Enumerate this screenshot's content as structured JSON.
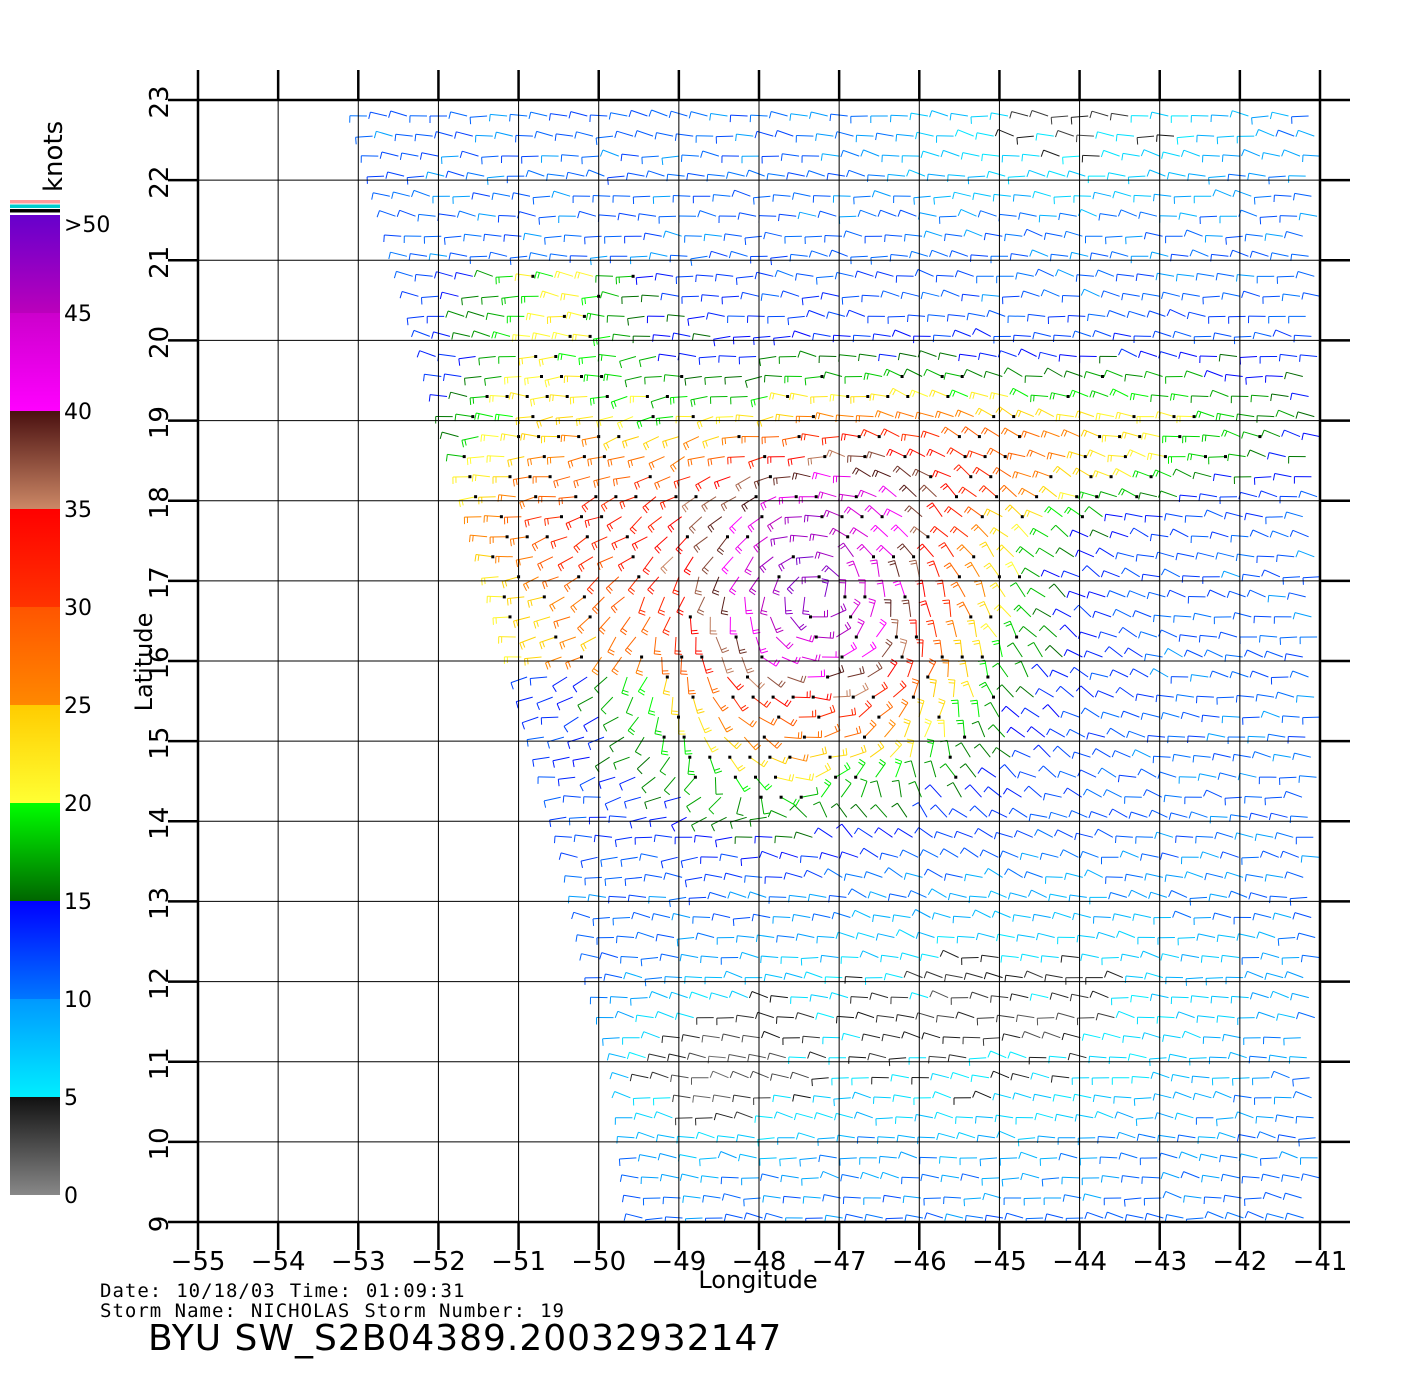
{
  "map": {
    "lon_min": -55,
    "lon_max": -41,
    "lat_min": 9,
    "lat_max": 23,
    "lon_ticks": [
      -55,
      -54,
      -53,
      -52,
      -51,
      -50,
      -49,
      -48,
      -47,
      -46,
      -45,
      -44,
      -43,
      -42,
      -41
    ],
    "lat_ticks": [
      9,
      10,
      11,
      12,
      13,
      14,
      15,
      16,
      17,
      18,
      19,
      20,
      21,
      22,
      23
    ],
    "x_axis_label": "Longitude",
    "y_axis_label": "Latitude",
    "swath_west_edge": [
      [
        -53.0,
        23
      ],
      [
        -51.0,
        16
      ],
      [
        -50.3,
        13.5
      ],
      [
        -50.0,
        12
      ],
      [
        -49.7,
        11
      ],
      [
        -49.5,
        9
      ]
    ],
    "storm_center": {
      "lon": -47.3,
      "lat": 16.8
    },
    "wind_vector_field": "gridded wind barbs over swath, colored by speed"
  },
  "colorbar": {
    "title": "knots",
    "labels": [
      ">50",
      "45",
      "40",
      "35",
      "30",
      "25",
      "20",
      "15",
      "10",
      "5",
      "0"
    ],
    "segments": [
      {
        "from": 0,
        "to": 5,
        "colors": [
          "#888888",
          "#111111"
        ]
      },
      {
        "from": 5,
        "to": 10,
        "colors": [
          "#00eeff",
          "#0099ff"
        ]
      },
      {
        "from": 10,
        "to": 15,
        "colors": [
          "#0077ff",
          "#0000ff"
        ]
      },
      {
        "from": 15,
        "to": 20,
        "colors": [
          "#006600",
          "#00ff00"
        ]
      },
      {
        "from": 20,
        "to": 25,
        "colors": [
          "#ffff33",
          "#ffcc00"
        ]
      },
      {
        "from": 25,
        "to": 30,
        "colors": [
          "#ff8800",
          "#ff5500"
        ]
      },
      {
        "from": 30,
        "to": 35,
        "colors": [
          "#ff3300",
          "#ff0000"
        ]
      },
      {
        "from": 35,
        "to": 40,
        "colors": [
          "#cc8866",
          "#4a1010"
        ]
      },
      {
        "from": 40,
        "to": 45,
        "colors": [
          "#ff00ff",
          "#cc00cc"
        ]
      },
      {
        "from": 45,
        "to": 50,
        "colors": [
          "#bb00bb",
          "#6600cc"
        ]
      }
    ],
    "top_stripes": [
      "#ff9999",
      "#00cccc",
      "#000000"
    ]
  },
  "footer": {
    "date_label": "Date:",
    "date_value": "10/18/03",
    "time_label": "Time:",
    "time_value": "01:09:31",
    "storm_name_label": "Storm  Name:",
    "storm_name_value": "NICHOLAS",
    "storm_number_label": "Storm  Number:",
    "storm_number_value": "19",
    "file_id": "BYU  SW_S2B04389.20032932147"
  }
}
